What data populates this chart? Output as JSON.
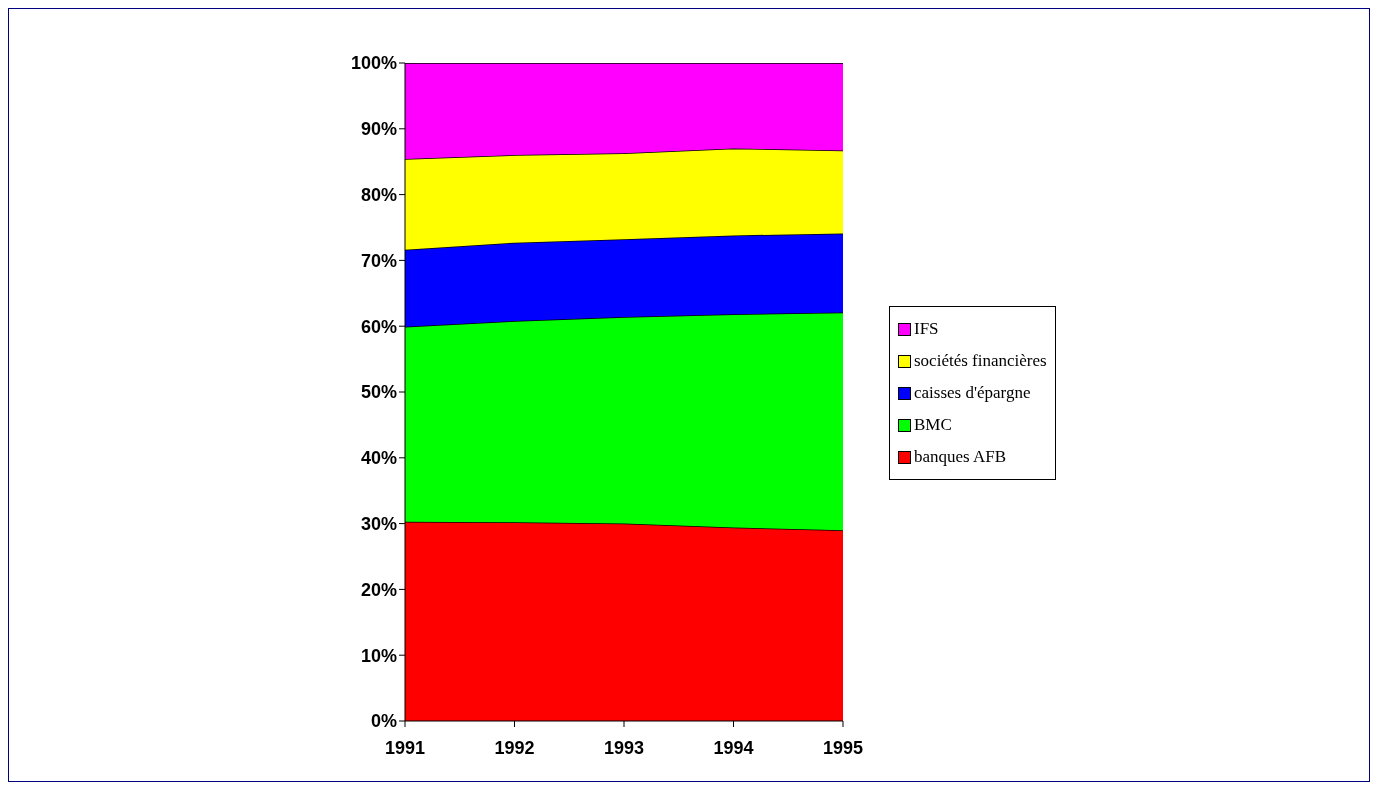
{
  "chart_data": {
    "type": "area",
    "stacked": true,
    "categories": [
      "1991",
      "1992",
      "1993",
      "1994",
      "1995"
    ],
    "series": [
      {
        "name": "banques AFB",
        "color": "#ff0000",
        "values": [
          30.3,
          30.2,
          30.0,
          29.4,
          29.0
        ]
      },
      {
        "name": "BMC",
        "color": "#00ff00",
        "values": [
          29.6,
          30.6,
          31.4,
          32.4,
          33.1
        ]
      },
      {
        "name": "caisses d'épargne",
        "color": "#0000ff",
        "values": [
          11.7,
          11.9,
          11.8,
          12.0,
          12.0
        ]
      },
      {
        "name": "sociétés financières",
        "color": "#ffff00",
        "values": [
          13.8,
          13.3,
          13.1,
          13.2,
          12.6
        ]
      },
      {
        "name": "IFS",
        "color": "#ff00ff",
        "values": [
          14.6,
          14.0,
          13.7,
          13.0,
          13.3
        ]
      }
    ],
    "ylim": [
      0,
      100
    ],
    "yticks": [
      {
        "value": 0,
        "label": "0%"
      },
      {
        "value": 10,
        "label": "10%"
      },
      {
        "value": 20,
        "label": "20%"
      },
      {
        "value": 30,
        "label": "30%"
      },
      {
        "value": 40,
        "label": "40%"
      },
      {
        "value": 50,
        "label": "50%"
      },
      {
        "value": 60,
        "label": "60%"
      },
      {
        "value": 70,
        "label": "70%"
      },
      {
        "value": 80,
        "label": "80%"
      },
      {
        "value": 90,
        "label": "90%"
      },
      {
        "value": 100,
        "label": "100%"
      }
    ],
    "grid": false,
    "legend": "right"
  }
}
